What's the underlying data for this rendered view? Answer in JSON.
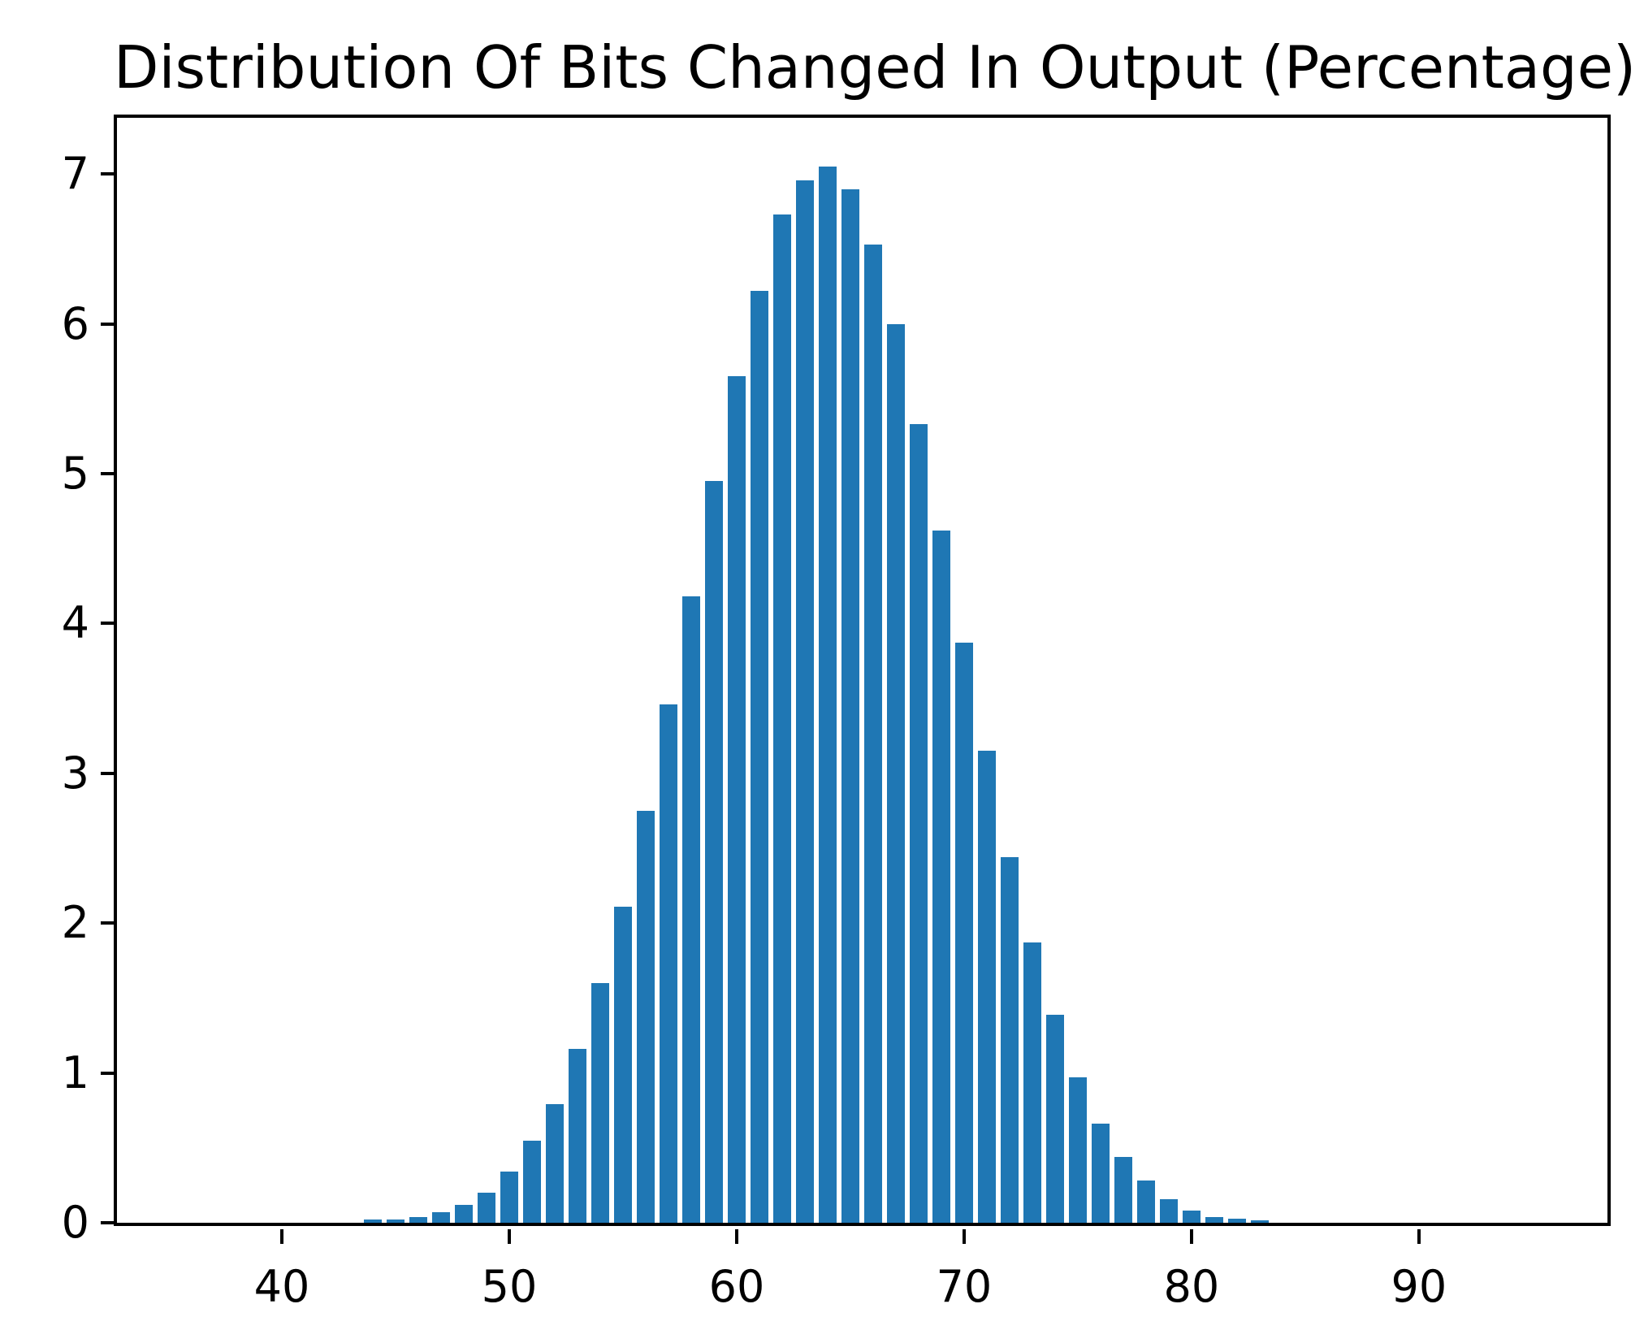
{
  "chart_data": {
    "type": "bar",
    "title": "Distribution Of Bits Changed In Output (Percentage)",
    "xlabel": "",
    "ylabel": "",
    "bar_color": "#1f77b4",
    "bar_width": 0.8,
    "grid": false,
    "legend": null,
    "x": [
      44,
      45,
      46,
      47,
      48,
      49,
      50,
      51,
      52,
      53,
      54,
      55,
      56,
      57,
      58,
      59,
      60,
      61,
      62,
      63,
      64,
      65,
      66,
      67,
      68,
      69,
      70,
      71,
      72,
      73,
      74,
      75,
      76,
      77,
      78,
      79,
      80,
      81,
      82,
      83
    ],
    "values": [
      0.02,
      0.02,
      0.04,
      0.07,
      0.12,
      0.2,
      0.34,
      0.55,
      0.79,
      1.16,
      1.6,
      2.11,
      2.75,
      3.46,
      4.18,
      4.95,
      5.65,
      6.22,
      6.73,
      6.96,
      7.05,
      6.9,
      6.53,
      6.0,
      5.33,
      4.62,
      3.87,
      3.15,
      2.44,
      1.87,
      1.39,
      0.97,
      0.66,
      0.44,
      0.28,
      0.16,
      0.08,
      0.04,
      0.025,
      0.015
    ],
    "xticks": [
      40,
      50,
      60,
      70,
      80,
      90
    ],
    "yticks": [
      0,
      1,
      2,
      3,
      4,
      5,
      6,
      7
    ],
    "xlim": [
      32.75,
      98.29
    ],
    "ylim": [
      0,
      7.375
    ]
  }
}
